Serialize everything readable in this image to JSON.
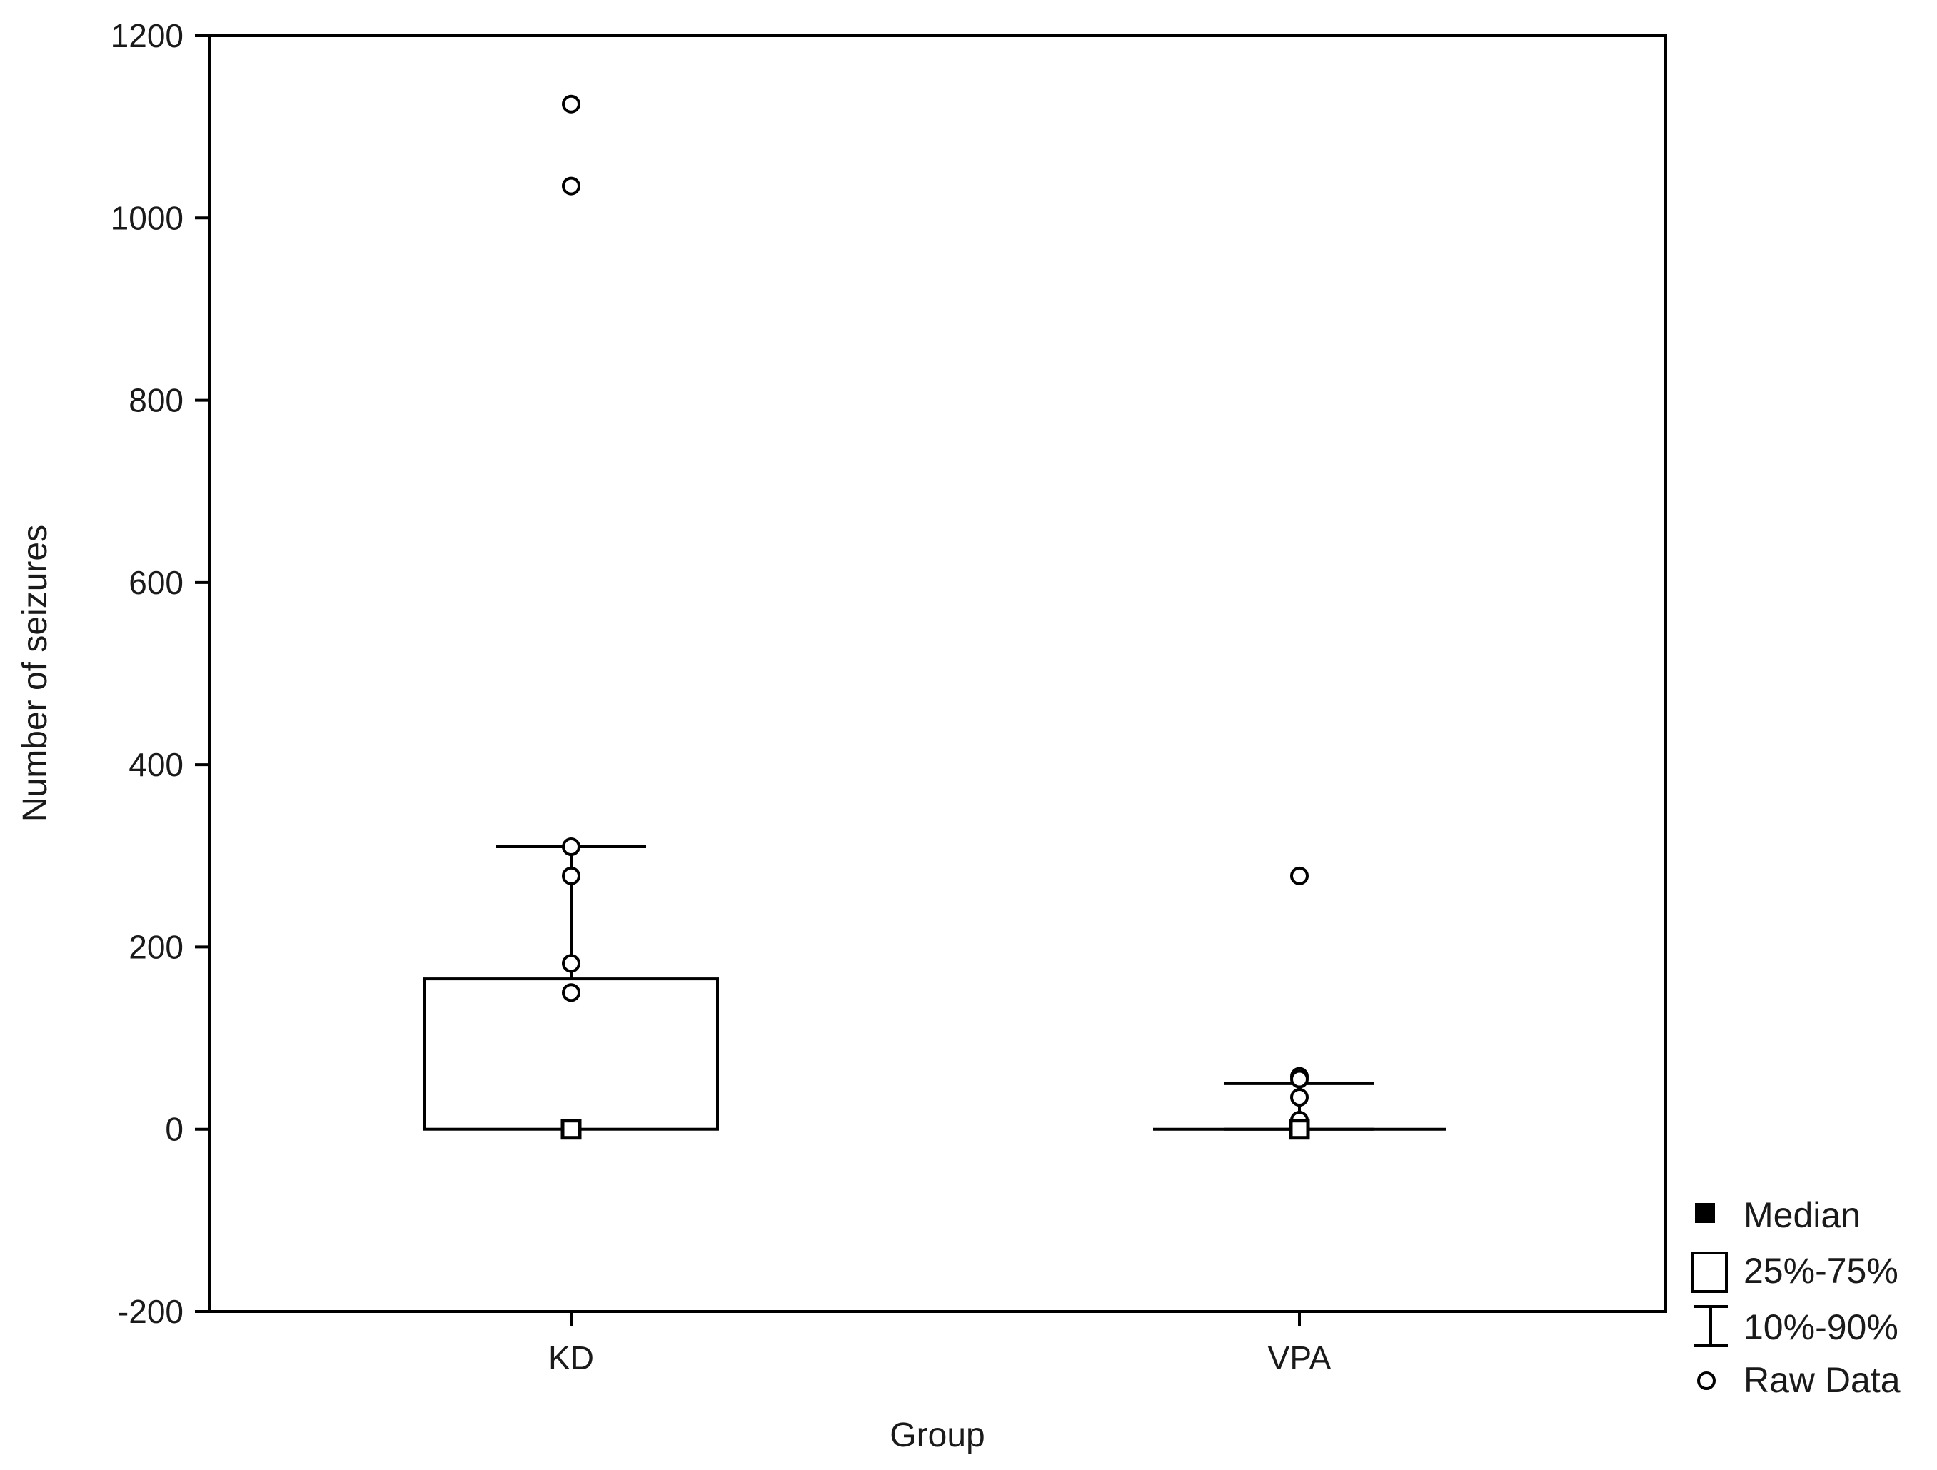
{
  "chart_data": {
    "type": "box",
    "title": "",
    "xlabel": "Group",
    "ylabel": "Number of seizures",
    "ylim": [
      -200,
      1200
    ],
    "yticks": [
      1200,
      1000,
      800,
      600,
      400,
      200,
      0,
      -200
    ],
    "grid": false,
    "legend_position": "bottom-right outside plot",
    "categories": [
      "KD",
      "VPA"
    ],
    "groups": [
      {
        "name": "KD",
        "median": 0,
        "q1": 0,
        "q3": 165,
        "p10": null,
        "p90": 310,
        "raw": [
          1125,
          1035,
          310,
          278,
          182,
          150,
          0,
          0,
          0
        ]
      },
      {
        "name": "VPA",
        "median": 0,
        "q1": 0,
        "q3": 0,
        "p10": 0,
        "p90": 50,
        "raw": [
          278,
          58,
          55,
          35,
          10,
          0,
          0
        ]
      }
    ],
    "legend": [
      {
        "symbol": "filled-square",
        "label": "Median"
      },
      {
        "symbol": "box",
        "label": "25%-75%"
      },
      {
        "symbol": "whisker",
        "label": "10%-90%"
      },
      {
        "symbol": "open-circle",
        "label": "Raw Data"
      }
    ]
  }
}
